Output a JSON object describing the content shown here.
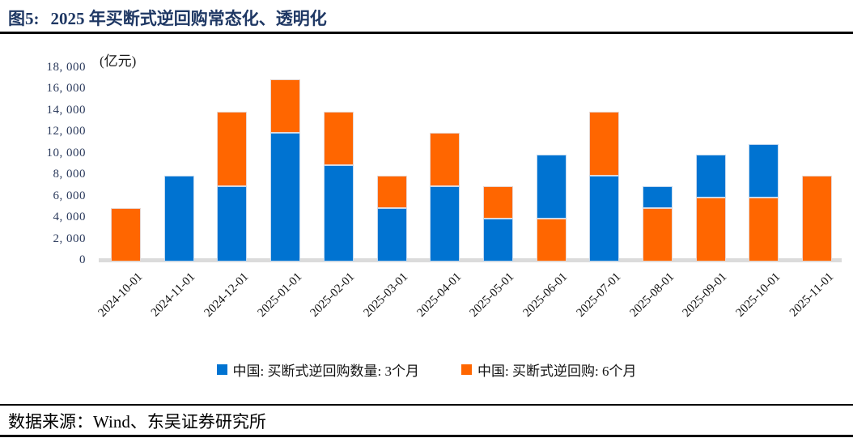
{
  "header": {
    "figure_label": "图5:",
    "title": "2025 年买断式逆回购常态化、透明化"
  },
  "chart_data": {
    "type": "bar",
    "stacked": true,
    "title": "2025 年买断式逆回购常态化、透明化",
    "unit_label": "(亿元)",
    "ylim": [
      0,
      18000
    ],
    "grid": false,
    "legend_position": "bottom",
    "y_ticks": [
      0,
      2000,
      4000,
      6000,
      8000,
      10000,
      12000,
      14000,
      16000,
      18000
    ],
    "y_tick_labels": [
      "0",
      "2, 000",
      "4, 000",
      "6, 000",
      "8, 000",
      "10, 000",
      "12, 000",
      "14, 000",
      "16, 000",
      "18, 000"
    ],
    "categories": [
      "2024-10-01",
      "2024-11-01",
      "2024-12-01",
      "2025-01-01",
      "2025-02-01",
      "2025-03-01",
      "2025-04-01",
      "2025-05-01",
      "2025-06-01",
      "2025-07-01",
      "2025-08-01",
      "2025-09-01",
      "2025-10-01",
      "2025-11-01"
    ],
    "series": [
      {
        "name": "中国: 买断式逆回购数量: 3个月",
        "color": "#0073d1",
        "values": [
          0,
          8000,
          7000,
          12000,
          9000,
          5000,
          7000,
          4000,
          6000,
          8000,
          2000,
          4000,
          5000,
          0
        ]
      },
      {
        "name": "中国: 买断式逆回购: 6个月",
        "color": "#ff6600",
        "values": [
          5000,
          0,
          7000,
          5000,
          5000,
          3000,
          5000,
          3000,
          4000,
          6000,
          5000,
          6000,
          6000,
          8000
        ]
      }
    ],
    "totals": [
      5000,
      8000,
      14000,
      17000,
      14000,
      8000,
      12000,
      7000,
      10000,
      14000,
      7000,
      10000,
      11000,
      8000
    ],
    "bottom_series_index": [
      1,
      0,
      0,
      0,
      0,
      0,
      0,
      0,
      1,
      0,
      1,
      1,
      1,
      1
    ]
  },
  "legend": {
    "items": [
      {
        "label": "中国: 买断式逆回购数量: 3个月",
        "color": "#0073d1"
      },
      {
        "label": "中国: 买断式逆回购: 6个月",
        "color": "#ff6600"
      }
    ]
  },
  "footer": {
    "source": "数据来源：Wind、东吴证券研究所"
  }
}
